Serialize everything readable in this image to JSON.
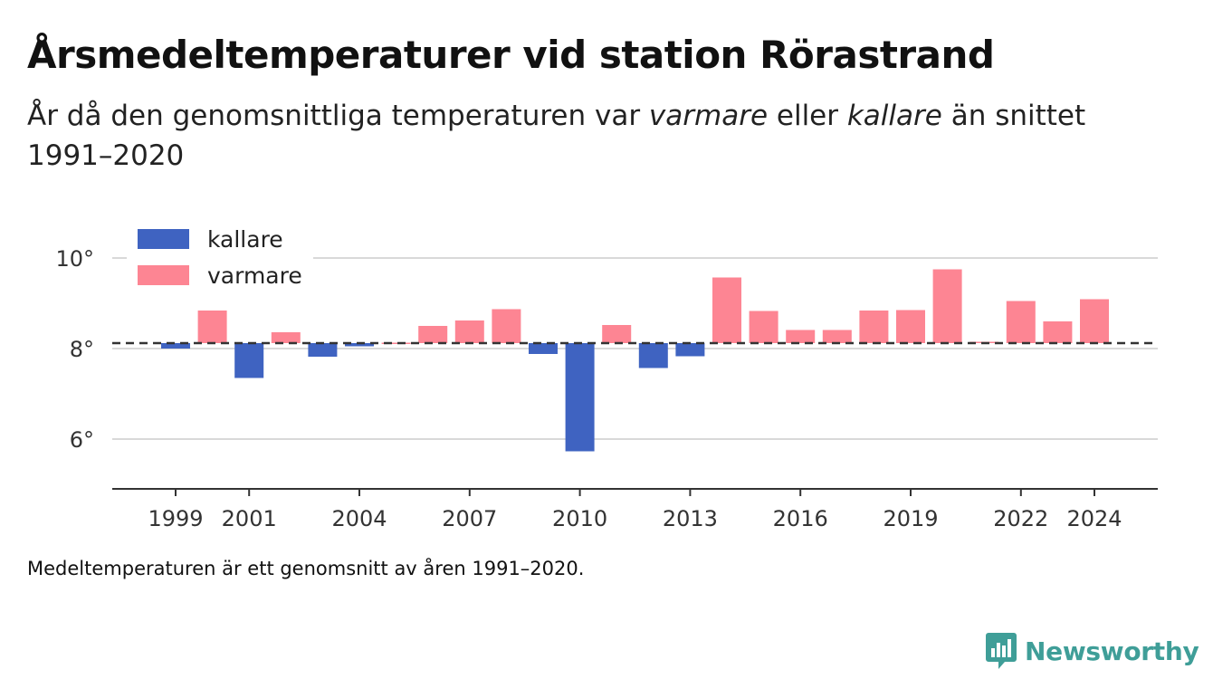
{
  "header": {
    "title": "Årsmedeltemperaturer vid station Rörastrand",
    "subtitle_part1": "År då den genomsnittliga temperaturen var ",
    "subtitle_warm": "varmare",
    "subtitle_part2": " eller ",
    "subtitle_cold": "kallare",
    "subtitle_part3": " än snittet 1991–2020"
  },
  "footnote": "Medeltemperaturen är ett genomsnitt av åren 1991–2020.",
  "brand": {
    "name": "Newsworthy",
    "icon": "newsworthy-logo-icon"
  },
  "colors": {
    "colder": "#3f63c1",
    "warmer": "#fd8593",
    "baseline": "#333333",
    "grid": "#d9d9d9",
    "brand": "#3f9e98"
  },
  "chart_data": {
    "type": "bar",
    "baseline": 8.12,
    "ylim": [
      4.9,
      10.5
    ],
    "yticks": [
      6,
      8,
      10
    ],
    "ytick_labels": [
      "6°",
      "8°",
      "10°"
    ],
    "x": [
      1999,
      2000,
      2001,
      2002,
      2003,
      2004,
      2005,
      2006,
      2007,
      2008,
      2009,
      2010,
      2011,
      2012,
      2013,
      2014,
      2015,
      2016,
      2017,
      2018,
      2019,
      2020,
      2021,
      2022,
      2023,
      2024
    ],
    "xticks": [
      1999,
      2001,
      2004,
      2007,
      2010,
      2013,
      2016,
      2019,
      2022,
      2024
    ],
    "values": [
      8.0,
      8.84,
      7.35,
      8.36,
      7.82,
      8.05,
      8.13,
      8.5,
      8.62,
      8.87,
      7.88,
      5.73,
      8.52,
      7.57,
      7.83,
      9.57,
      8.83,
      8.41,
      8.41,
      8.84,
      8.85,
      9.75,
      8.15,
      9.05,
      8.6,
      9.09
    ],
    "legend": [
      {
        "key": "colder",
        "label": "kallare"
      },
      {
        "key": "warmer",
        "label": "varmare"
      }
    ],
    "legend_position": "top-left"
  }
}
